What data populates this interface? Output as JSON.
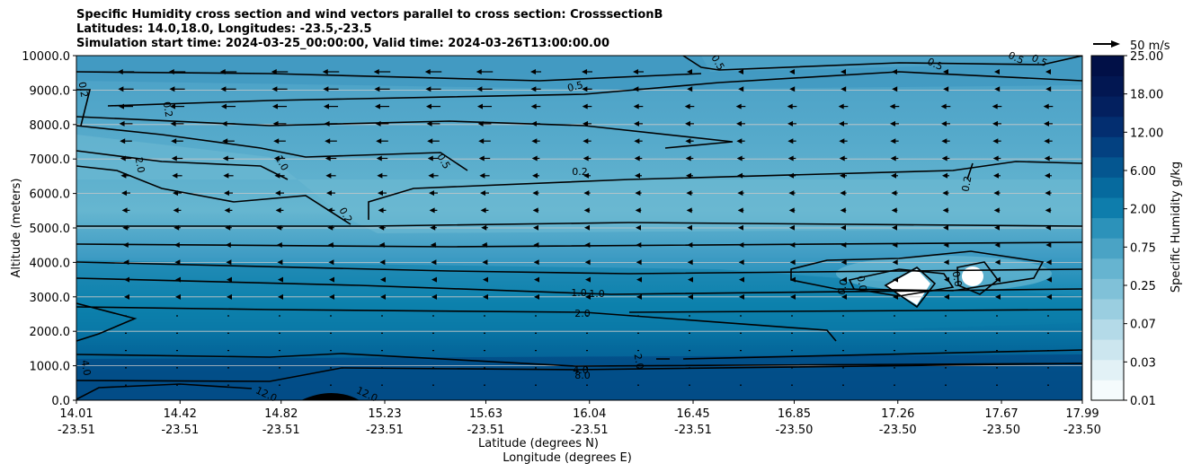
{
  "chart_data": {
    "type": "contourf",
    "title_lines": [
      "Specific Humidity cross section and wind vectors parallel to cross section: CrosssectionB",
      "Latitudes: 14.0,18.0, Longitudes: -23.5,-23.5",
      "Simulation start time: 2024-03-25_00:00:00, Valid time: 2024-03-26T13:00:00.00"
    ],
    "ylabel": "Altitude (meters)",
    "xlabel_lines": [
      "Latitude (degrees N)",
      "Longitude (degrees E)"
    ],
    "ylim": [
      0,
      10000
    ],
    "y_ticks": [
      "0.0",
      "1000.0",
      "2000.0",
      "3000.0",
      "4000.0",
      "5000.0",
      "6000.0",
      "7000.0",
      "8000.0",
      "9000.0",
      "10000.0"
    ],
    "x_ticks": [
      {
        "lat": "14.01",
        "lon": "-23.51"
      },
      {
        "lat": "14.42",
        "lon": "-23.51"
      },
      {
        "lat": "14.82",
        "lon": "-23.51"
      },
      {
        "lat": "15.23",
        "lon": "-23.51"
      },
      {
        "lat": "15.63",
        "lon": "-23.51"
      },
      {
        "lat": "16.04",
        "lon": "-23.51"
      },
      {
        "lat": "16.45",
        "lon": "-23.51"
      },
      {
        "lat": "16.85",
        "lon": "-23.50"
      },
      {
        "lat": "17.26",
        "lon": "-23.50"
      },
      {
        "lat": "17.67",
        "lon": "-23.50"
      },
      {
        "lat": "17.99",
        "lon": "-23.50"
      }
    ],
    "colorbar": {
      "label": "Specific Humidity g/kg",
      "ticks": [
        "0.01",
        "0.03",
        "0.07",
        "0.25",
        "0.75",
        "2.00",
        "6.00",
        "12.00",
        "18.00",
        "25.00"
      ]
    },
    "quiver_key": "50 m/s",
    "contour_labels": [
      "0.2",
      "0.2",
      "0.2",
      "0.2",
      "0.5",
      "0.5",
      "0.5",
      "0.5",
      "1.0",
      "1.0",
      "1.0",
      "2.0",
      "2.0",
      "2.0",
      "4.0",
      "4.0",
      "8.0",
      "12.0",
      "12.0",
      "0.5",
      "0.5",
      "0.2",
      "0.0",
      "0.0",
      "0.0"
    ],
    "colors": {
      "band_top": "#4aa0c6",
      "band_mid": "#66b6d0",
      "band_low": "#0a7fab",
      "band_bottom": "#034f8a",
      "colorbar_bands": [
        "#f5fbfd",
        "#e2f1f6",
        "#cce6ef",
        "#b4dae8",
        "#9acee0",
        "#80c1d8",
        "#66b4d0",
        "#4aa3c5",
        "#2c92ba",
        "#0e7dac",
        "#066a9e",
        "#045690",
        "#034181",
        "#032e70",
        "#03205f",
        "#021752",
        "#011047"
      ]
    }
  }
}
